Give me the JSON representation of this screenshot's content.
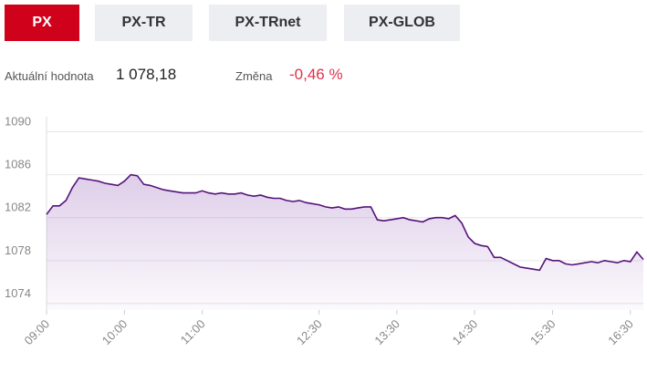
{
  "tabs": [
    "PX",
    "PX-TR",
    "PX-TRnet",
    "PX-GLOB"
  ],
  "info": {
    "value_label": "Aktuální hodnota",
    "value": "1 078,18",
    "change_label": "Změna",
    "change": "-0,46 %"
  },
  "chart_data": {
    "type": "line",
    "x": [
      540,
      545,
      550,
      555,
      560,
      565,
      570,
      575,
      580,
      585,
      590,
      595,
      600,
      605,
      610,
      615,
      620,
      625,
      630,
      635,
      640,
      645,
      650,
      655,
      660,
      665,
      670,
      675,
      680,
      685,
      690,
      695,
      700,
      705,
      710,
      715,
      720,
      725,
      730,
      735,
      740,
      745,
      750,
      755,
      760,
      765,
      770,
      775,
      780,
      785,
      790,
      795,
      800,
      805,
      810,
      815,
      820,
      825,
      830,
      835,
      840,
      845,
      850,
      855,
      860,
      865,
      870,
      875,
      880,
      885,
      890,
      895,
      900,
      905,
      910,
      915,
      920,
      925,
      930,
      935,
      940,
      945,
      950,
      955,
      960,
      965,
      970,
      975,
      980,
      985,
      990,
      995,
      1000
    ],
    "series": [
      {
        "color": "#55137a",
        "values": [
          1082.3,
          1083.1,
          1083.1,
          1083.6,
          1084.8,
          1085.7,
          1085.6,
          1085.5,
          1085.4,
          1085.2,
          1085.1,
          1085.0,
          1085.4,
          1086.0,
          1085.9,
          1085.1,
          1085.0,
          1084.8,
          1084.6,
          1084.5,
          1084.4,
          1084.3,
          1084.3,
          1084.3,
          1084.5,
          1084.3,
          1084.2,
          1084.3,
          1084.2,
          1084.2,
          1084.3,
          1084.1,
          1084.0,
          1084.1,
          1083.9,
          1083.8,
          1083.8,
          1083.6,
          1083.5,
          1083.6,
          1083.4,
          1083.3,
          1083.2,
          1083.0,
          1082.9,
          1083.0,
          1082.8,
          1082.8,
          1082.9,
          1083.0,
          1083.0,
          1081.8,
          1081.7,
          1081.8,
          1081.9,
          1082.0,
          1081.8,
          1081.7,
          1081.6,
          1081.9,
          1082.0,
          1082.0,
          1081.9,
          1082.2,
          1081.5,
          1080.2,
          1079.6,
          1079.4,
          1079.3,
          1078.3,
          1078.3,
          1078.0,
          1077.7,
          1077.4,
          1077.3,
          1077.2,
          1077.1,
          1078.2,
          1078.0,
          1078.0,
          1077.7,
          1077.6,
          1077.7,
          1077.8,
          1077.9,
          1077.8,
          1078.0,
          1077.9,
          1077.8,
          1078.0,
          1077.9,
          1078.8,
          1078.1
        ]
      }
    ],
    "xlim": [
      540,
      1000
    ],
    "xticks": [
      {
        "value": 540,
        "label": "09:00"
      },
      {
        "value": 600,
        "label": "10:00"
      },
      {
        "value": 660,
        "label": "11:00"
      },
      {
        "value": 750,
        "label": "12:30"
      },
      {
        "value": 810,
        "label": "13:30"
      },
      {
        "value": 870,
        "label": "14:30"
      },
      {
        "value": 930,
        "label": "15:30"
      },
      {
        "value": 990,
        "label": "16:30"
      }
    ],
    "ylim": [
      1073.4,
      1091.4
    ],
    "yticks": [
      1074,
      1078,
      1082,
      1086,
      1090
    ],
    "grid": true
  }
}
